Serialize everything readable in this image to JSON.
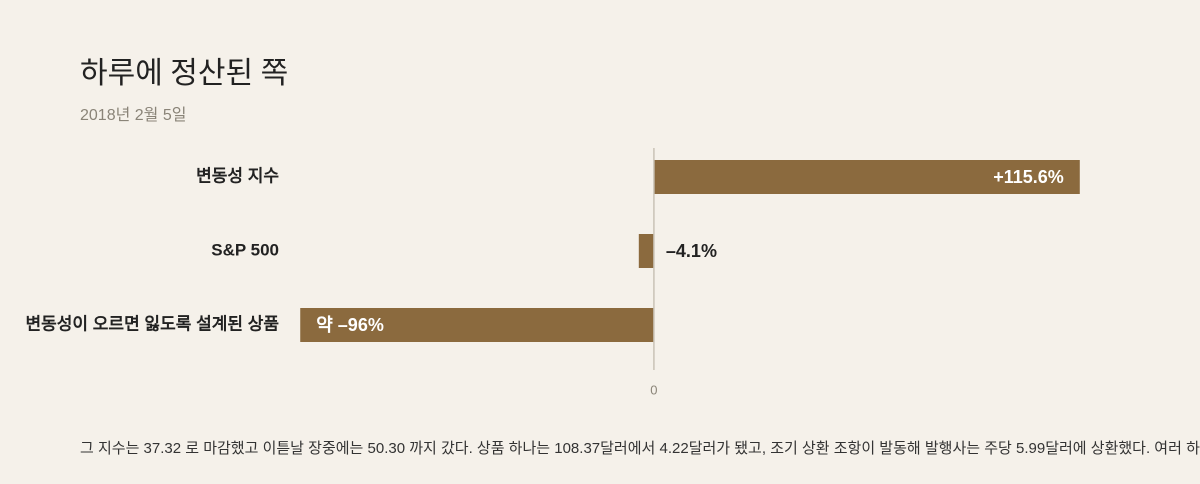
{
  "chart_data": {
    "type": "barh",
    "title": "하루에 정산된 쪽",
    "subtitle": "2018년 2월 5일",
    "categories": [
      "변동성 지수",
      "S&P 500",
      "변동성이 오르면 잃도록 설계된 상품"
    ],
    "values": [
      115.6,
      -4.1,
      -96
    ],
    "value_labels": [
      "+115.6%",
      "–4.1%",
      "약 –96%"
    ],
    "color": "#8b6a3e",
    "xlim": [
      -100,
      120
    ],
    "xticks": [
      0
    ],
    "note": "그 지수는 37.32 로 마감했고 이튿날 장중에는 50.30 까지 갔다. 상품 하나는 108.37달러에서 4.22달러가 됐고, 조기 상환 조항이 발동해 발행사는 주당 5.99달러에 상환했다. 여러 하"
  }
}
